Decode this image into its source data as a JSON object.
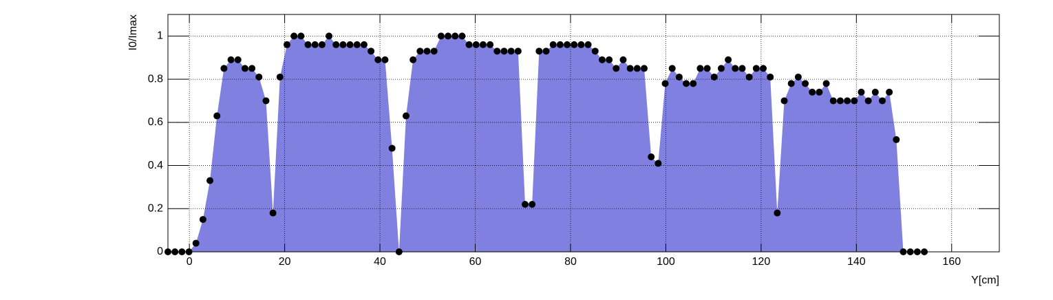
{
  "chart_data": {
    "type": "area-scatter",
    "xlabel": "Y[cm]",
    "ylabel": "I0/Imax",
    "x": [
      -4.5,
      -3.03,
      -1.56,
      -0.09,
      1.38,
      2.85,
      4.32,
      5.79,
      7.26,
      8.73,
      10.2,
      11.67,
      13.14,
      14.61,
      16.08,
      17.55,
      19.02,
      20.49,
      21.96,
      23.43,
      24.9,
      26.37,
      27.84,
      29.31,
      30.78,
      32.25,
      33.72,
      35.19,
      36.66,
      38.13,
      39.6,
      41.07,
      42.54,
      44.01,
      45.48,
      46.95,
      48.42,
      49.89,
      51.36,
      52.83,
      54.3,
      55.77,
      57.24,
      58.71,
      60.18,
      61.65,
      63.12,
      64.59,
      66.06,
      67.53,
      69,
      70.47,
      71.94,
      73.41,
      74.88,
      76.35,
      77.82,
      79.29,
      80.76,
      82.23,
      83.7,
      85.17,
      86.64,
      88.11,
      89.58,
      91.05,
      92.52,
      93.99,
      95.46,
      96.93,
      98.4,
      99.87,
      101.34,
      102.81,
      104.28,
      105.75,
      107.22,
      108.69,
      110.16,
      111.63,
      113.1,
      114.57,
      116.04,
      117.51,
      118.98,
      120.45,
      121.92,
      123.39,
      124.86,
      126.33,
      127.8,
      129.27,
      130.74,
      132.21,
      133.68,
      135.15,
      136.62,
      138.09,
      139.56,
      141.03,
      142.5,
      143.97,
      145.44,
      146.91,
      148.38,
      149.85,
      151.32,
      152.79,
      154.26
    ],
    "series": [
      {
        "fill": "#8080e0",
        "color": "#000000",
        "values": [
          0,
          0,
          0,
          0,
          0.04,
          0.15,
          0.33,
          0.63,
          0.85,
          0.89,
          0.89,
          0.85,
          0.85,
          0.81,
          0.7,
          0.18,
          0.81,
          0.96,
          1,
          1,
          0.96,
          0.96,
          0.96,
          1,
          0.96,
          0.96,
          0.96,
          0.96,
          0.96,
          0.93,
          0.89,
          0.89,
          0.48,
          0,
          0.63,
          0.89,
          0.93,
          0.93,
          0.93,
          1,
          1,
          1,
          1,
          0.96,
          0.96,
          0.96,
          0.96,
          0.93,
          0.93,
          0.93,
          0.93,
          0.22,
          0.22,
          0.93,
          0.93,
          0.96,
          0.96,
          0.96,
          0.96,
          0.96,
          0.96,
          0.93,
          0.89,
          0.89,
          0.85,
          0.89,
          0.85,
          0.85,
          0.85,
          0.44,
          0.41,
          0.78,
          0.85,
          0.81,
          0.78,
          0.78,
          0.85,
          0.85,
          0.81,
          0.85,
          0.89,
          0.85,
          0.85,
          0.81,
          0.85,
          0.85,
          0.81,
          0.18,
          0.7,
          0.78,
          0.81,
          0.78,
          0.74,
          0.74,
          0.78,
          0.7,
          0.7,
          0.7,
          0.7,
          0.74,
          0.7,
          0.74,
          0.7,
          0.74,
          0.52,
          0,
          0,
          0,
          0
        ]
      }
    ],
    "xlim": [
      -4.5,
      170
    ],
    "ylim": [
      0,
      1.1
    ],
    "xticks": [
      0,
      20,
      40,
      60,
      80,
      100,
      120,
      140,
      160
    ],
    "yticks": [
      0,
      0.2,
      0.4,
      0.6,
      0.8,
      1
    ],
    "grid": true
  }
}
